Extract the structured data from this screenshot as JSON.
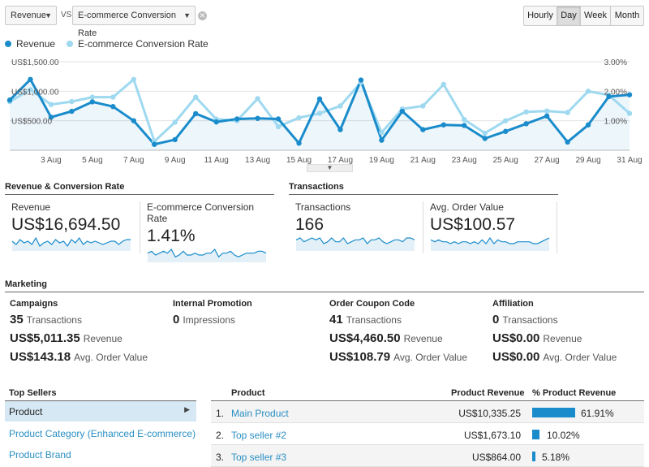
{
  "controls": {
    "metric1": "Revenue",
    "vs": "VS",
    "metric2": "E-commerce Conversion Rate",
    "granularity": [
      "Hourly",
      "Day",
      "Week",
      "Month"
    ],
    "active_granularity": "Day"
  },
  "legend": {
    "series1": "Revenue",
    "series2": "E-commerce Conversion Rate",
    "color1": "#1a8ccb",
    "color2": "#9ed9f0"
  },
  "chart_data": {
    "type": "line",
    "x": [
      "1 Aug",
      "2 Aug",
      "3 Aug",
      "4 Aug",
      "5 Aug",
      "6 Aug",
      "7 Aug",
      "8 Aug",
      "9 Aug",
      "10 Aug",
      "11 Aug",
      "12 Aug",
      "13 Aug",
      "14 Aug",
      "15 Aug",
      "16 Aug",
      "17 Aug",
      "18 Aug",
      "19 Aug",
      "20 Aug",
      "21 Aug",
      "22 Aug",
      "23 Aug",
      "24 Aug",
      "25 Aug",
      "26 Aug",
      "27 Aug",
      "28 Aug",
      "29 Aug",
      "30 Aug",
      "31 Aug"
    ],
    "x_ticks": [
      "3 Aug",
      "5 Aug",
      "7 Aug",
      "9 Aug",
      "11 Aug",
      "13 Aug",
      "15 Aug",
      "17 Aug",
      "19 Aug",
      "21 Aug",
      "23 Aug",
      "25 Aug",
      "27 Aug",
      "29 Aug",
      "31 Aug"
    ],
    "y_left_ticks": [
      "US$1,500.00",
      "US$1,000.00",
      "US$500.00"
    ],
    "y_right_ticks": [
      "3.00%",
      "2.00%",
      "1.00%"
    ],
    "ylim_left": [
      0,
      1500
    ],
    "ylim_right": [
      0,
      3
    ],
    "series": [
      {
        "name": "Revenue",
        "axis": "left",
        "values": [
          850,
          1200,
          560,
          660,
          820,
          740,
          500,
          100,
          180,
          620,
          480,
          530,
          540,
          530,
          120,
          870,
          350,
          1190,
          170,
          660,
          350,
          430,
          420,
          200,
          320,
          450,
          580,
          140,
          430,
          910,
          940
        ]
      },
      {
        "name": "E-commerce Conversion Rate",
        "axis": "right",
        "values": [
          1.65,
          2.05,
          1.55,
          1.65,
          1.8,
          1.8,
          2.4,
          0.3,
          0.95,
          1.8,
          1.05,
          1.0,
          1.75,
          0.8,
          1.1,
          1.25,
          1.5,
          2.3,
          0.6,
          1.4,
          1.5,
          2.23,
          1.04,
          0.58,
          1.0,
          1.3,
          1.33,
          1.28,
          2.0,
          1.87,
          1.25
        ]
      }
    ]
  },
  "sections": {
    "revenue_title": "Revenue & Conversion Rate",
    "transactions_title": "Transactions",
    "marketing_title": "Marketing"
  },
  "metrics": [
    {
      "label": "Revenue",
      "value": "US$16,694.50",
      "spark": [
        5,
        3,
        6,
        4,
        5,
        3,
        7,
        2,
        4,
        5,
        3,
        6,
        4,
        5,
        2,
        6,
        4,
        7,
        3,
        5,
        4,
        5,
        4,
        3,
        4,
        5,
        5,
        3,
        5,
        6,
        6
      ]
    },
    {
      "label": "E-commerce Conversion Rate",
      "value": "1.41%",
      "spark": [
        4,
        5,
        3,
        4,
        5,
        4,
        6,
        2,
        3,
        5,
        3,
        3,
        4,
        3,
        3,
        4,
        4,
        6,
        2,
        4,
        4,
        5,
        3,
        2,
        3,
        4,
        4,
        4,
        5,
        5,
        4
      ]
    },
    {
      "label": "Transactions",
      "value": "166",
      "spark": [
        5,
        6,
        4,
        5,
        6,
        5,
        6,
        3,
        4,
        6,
        4,
        4,
        6,
        3,
        4,
        5,
        5,
        6,
        3,
        5,
        5,
        6,
        4,
        3,
        4,
        5,
        5,
        4,
        6,
        6,
        5
      ]
    },
    {
      "label": "Avg. Order Value",
      "value": "US$100.57",
      "spark": [
        5,
        4,
        5,
        4,
        4,
        3,
        4,
        3,
        4,
        4,
        3,
        4,
        3,
        5,
        3,
        6,
        3,
        5,
        4,
        4,
        3,
        3,
        4,
        4,
        4,
        4,
        3,
        3,
        4,
        5,
        6
      ]
    }
  ],
  "marketing": [
    {
      "head": "Campaigns",
      "rows": [
        [
          "35",
          "Transactions"
        ],
        [
          "US$5,011.35",
          "Revenue"
        ],
        [
          "US$143.18",
          "Avg. Order Value"
        ]
      ]
    },
    {
      "head": "Internal Promotion",
      "rows": [
        [
          "0",
          "Impressions"
        ]
      ]
    },
    {
      "head": "Order Coupon Code",
      "rows": [
        [
          "41",
          "Transactions"
        ],
        [
          "US$4,460.50",
          "Revenue"
        ],
        [
          "US$108.79",
          "Avg. Order Value"
        ]
      ]
    },
    {
      "head": "Affiliation",
      "rows": [
        [
          "0",
          "Transactions"
        ],
        [
          "US$0.00",
          "Revenue"
        ],
        [
          "US$0.00",
          "Avg. Order Value"
        ]
      ]
    }
  ],
  "top_sellers": {
    "title": "Top Sellers",
    "items": [
      "Product",
      "Product Category (Enhanced E-commerce)",
      "Product Brand"
    ],
    "active": "Product"
  },
  "product_table": {
    "headers": [
      "Product",
      "Product Revenue",
      "% Product Revenue"
    ],
    "rows": [
      {
        "n": "1.",
        "name": "Main Product",
        "revenue": "US$10,335.25",
        "pct": "61.91%",
        "share": 0.6191
      },
      {
        "n": "2.",
        "name": "Top seller #2",
        "revenue": "US$1,673.10",
        "pct": "10.02%",
        "share": 0.1002
      },
      {
        "n": "3.",
        "name": "Top seller #3",
        "revenue": "US$864.00",
        "pct": "5.18%",
        "share": 0.0518
      }
    ]
  }
}
